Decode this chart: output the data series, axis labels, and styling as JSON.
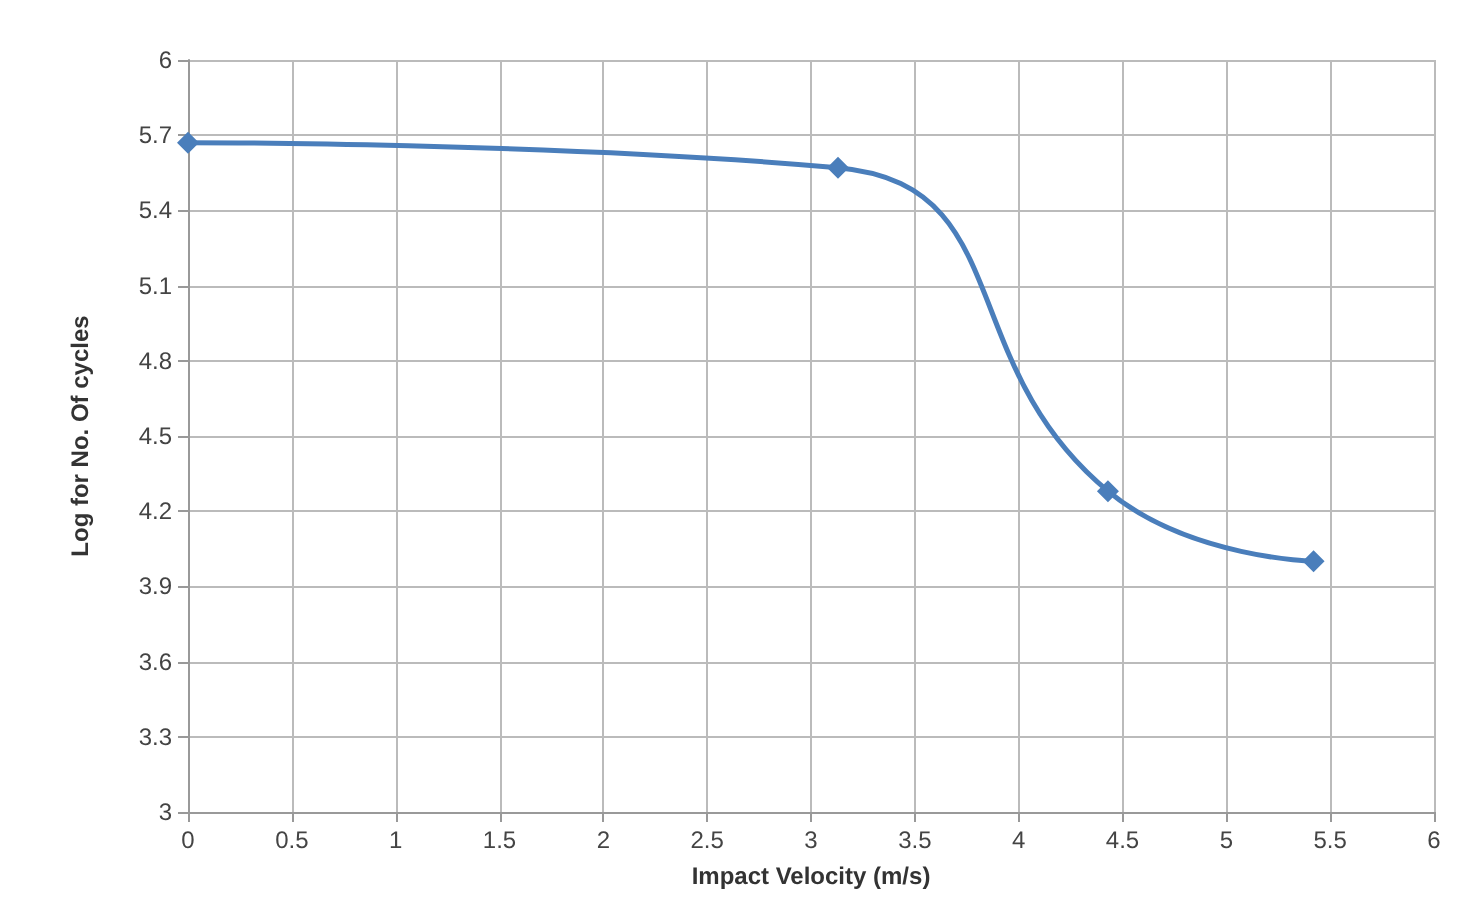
{
  "chart_data": {
    "type": "line",
    "xlabel": "Impact Velocity (m/s)",
    "ylabel": "Log for No. Of cycles",
    "x": [
      0,
      3.13,
      4.43,
      5.42
    ],
    "series": [
      {
        "color": "#4a7ebb",
        "values": [
          5.67,
          5.57,
          4.28,
          4.0
        ]
      }
    ],
    "xlim": [
      0,
      6
    ],
    "xticks": [
      0,
      0.5,
      1,
      1.5,
      2,
      2.5,
      3,
      3.5,
      4,
      4.5,
      5,
      5.5,
      6
    ],
    "ylim": [
      3,
      6
    ],
    "yticks": [
      3,
      3.3,
      3.6,
      3.9,
      4.2,
      4.5,
      4.8,
      5.1,
      5.4,
      5.7,
      6
    ],
    "grid": true,
    "marker": "diamond",
    "line_style": "solid"
  }
}
